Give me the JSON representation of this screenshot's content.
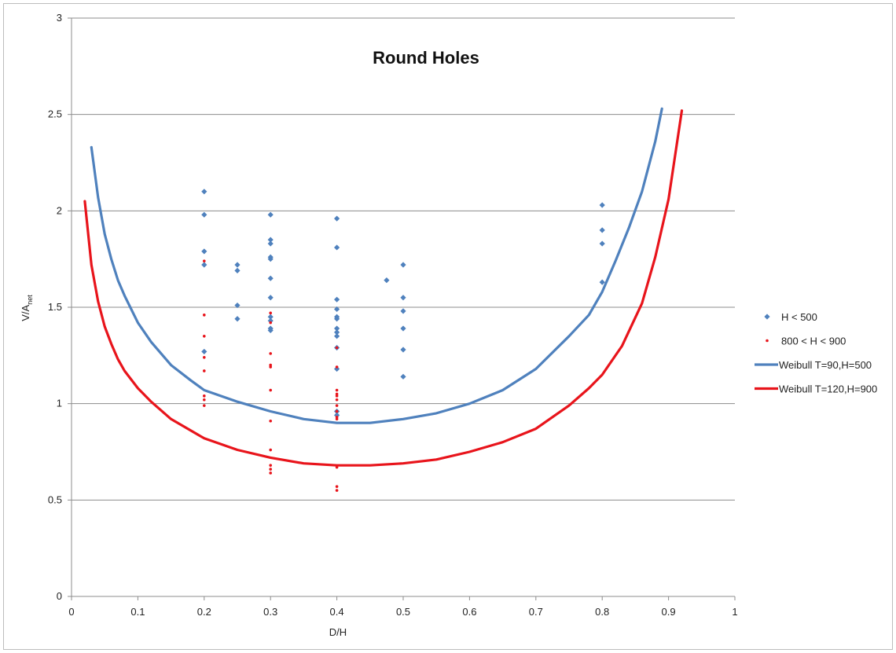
{
  "chart_data": {
    "type": "scatter",
    "title": "Round Holes",
    "xlabel": "D/H",
    "ylabel": {
      "main": "V/A",
      "sub": "net"
    },
    "xlim": [
      0,
      1
    ],
    "ylim": [
      0,
      3
    ],
    "x_ticks": [
      "0",
      "0.1",
      "0.2",
      "0.3",
      "0.4",
      "0.5",
      "0.6",
      "0.7",
      "0.8",
      "0.9",
      "1"
    ],
    "y_ticks": [
      "0",
      "0.5",
      "1",
      "1.5",
      "2",
      "2.5",
      "3"
    ],
    "grid": "horizontal",
    "legend_position": "right",
    "series": [
      {
        "name": "H < 500",
        "kind": "scatter",
        "marker": "diamond",
        "color": "#4f81bd",
        "points": [
          [
            0.2,
            2.1
          ],
          [
            0.2,
            1.98
          ],
          [
            0.2,
            1.79
          ],
          [
            0.2,
            1.72
          ],
          [
            0.2,
            1.27
          ],
          [
            0.25,
            1.72
          ],
          [
            0.25,
            1.69
          ],
          [
            0.25,
            1.51
          ],
          [
            0.25,
            1.44
          ],
          [
            0.3,
            1.98
          ],
          [
            0.3,
            1.85
          ],
          [
            0.3,
            1.83
          ],
          [
            0.3,
            1.76
          ],
          [
            0.3,
            1.75
          ],
          [
            0.3,
            1.65
          ],
          [
            0.3,
            1.55
          ],
          [
            0.3,
            1.45
          ],
          [
            0.3,
            1.43
          ],
          [
            0.3,
            1.39
          ],
          [
            0.3,
            1.38
          ],
          [
            0.4,
            1.96
          ],
          [
            0.4,
            1.81
          ],
          [
            0.4,
            1.54
          ],
          [
            0.4,
            1.49
          ],
          [
            0.4,
            1.45
          ],
          [
            0.4,
            1.44
          ],
          [
            0.4,
            1.39
          ],
          [
            0.4,
            1.37
          ],
          [
            0.4,
            1.35
          ],
          [
            0.4,
            1.29
          ],
          [
            0.4,
            1.18
          ],
          [
            0.4,
            0.96
          ],
          [
            0.4,
            0.94
          ],
          [
            0.475,
            1.64
          ],
          [
            0.5,
            1.72
          ],
          [
            0.5,
            1.55
          ],
          [
            0.5,
            1.48
          ],
          [
            0.5,
            1.39
          ],
          [
            0.5,
            1.28
          ],
          [
            0.5,
            1.14
          ],
          [
            0.8,
            2.03
          ],
          [
            0.8,
            1.9
          ],
          [
            0.8,
            1.83
          ],
          [
            0.8,
            1.63
          ]
        ]
      },
      {
        "name": "800 < H < 900",
        "kind": "scatter",
        "marker": "dot",
        "color": "#e8141b",
        "points": [
          [
            0.2,
            1.74
          ],
          [
            0.2,
            1.46
          ],
          [
            0.2,
            1.35
          ],
          [
            0.2,
            1.24
          ],
          [
            0.2,
            1.17
          ],
          [
            0.2,
            1.04
          ],
          [
            0.2,
            1.02
          ],
          [
            0.2,
            0.99
          ],
          [
            0.3,
            1.47
          ],
          [
            0.3,
            1.42
          ],
          [
            0.3,
            1.26
          ],
          [
            0.3,
            1.2
          ],
          [
            0.3,
            1.19
          ],
          [
            0.3,
            1.07
          ],
          [
            0.3,
            0.91
          ],
          [
            0.3,
            0.76
          ],
          [
            0.3,
            0.68
          ],
          [
            0.3,
            0.66
          ],
          [
            0.3,
            0.64
          ],
          [
            0.4,
            1.29
          ],
          [
            0.4,
            1.19
          ],
          [
            0.4,
            1.07
          ],
          [
            0.4,
            1.05
          ],
          [
            0.4,
            1.04
          ],
          [
            0.4,
            1.02
          ],
          [
            0.4,
            0.99
          ],
          [
            0.4,
            0.96
          ],
          [
            0.4,
            0.93
          ],
          [
            0.4,
            0.92
          ],
          [
            0.4,
            0.67
          ],
          [
            0.4,
            0.57
          ],
          [
            0.4,
            0.55
          ]
        ]
      },
      {
        "name": "Weibull T=90,H=500",
        "kind": "line",
        "color": "#4f81bd",
        "points": [
          [
            0.03,
            2.33
          ],
          [
            0.04,
            2.07
          ],
          [
            0.05,
            1.88
          ],
          [
            0.06,
            1.75
          ],
          [
            0.07,
            1.64
          ],
          [
            0.08,
            1.56
          ],
          [
            0.1,
            1.42
          ],
          [
            0.12,
            1.32
          ],
          [
            0.15,
            1.2
          ],
          [
            0.18,
            1.12
          ],
          [
            0.2,
            1.07
          ],
          [
            0.25,
            1.01
          ],
          [
            0.3,
            0.96
          ],
          [
            0.35,
            0.92
          ],
          [
            0.4,
            0.9
          ],
          [
            0.45,
            0.9
          ],
          [
            0.5,
            0.92
          ],
          [
            0.55,
            0.95
          ],
          [
            0.6,
            1.0
          ],
          [
            0.65,
            1.07
          ],
          [
            0.7,
            1.18
          ],
          [
            0.75,
            1.35
          ],
          [
            0.78,
            1.46
          ],
          [
            0.8,
            1.58
          ],
          [
            0.82,
            1.74
          ],
          [
            0.84,
            1.91
          ],
          [
            0.86,
            2.1
          ],
          [
            0.88,
            2.36
          ],
          [
            0.89,
            2.53
          ]
        ]
      },
      {
        "name": "Weibull T=120,H=900",
        "kind": "line",
        "color": "#e8141b",
        "points": [
          [
            0.02,
            2.05
          ],
          [
            0.03,
            1.72
          ],
          [
            0.04,
            1.53
          ],
          [
            0.05,
            1.4
          ],
          [
            0.06,
            1.31
          ],
          [
            0.07,
            1.23
          ],
          [
            0.08,
            1.17
          ],
          [
            0.1,
            1.08
          ],
          [
            0.12,
            1.01
          ],
          [
            0.15,
            0.92
          ],
          [
            0.2,
            0.82
          ],
          [
            0.25,
            0.76
          ],
          [
            0.3,
            0.72
          ],
          [
            0.35,
            0.69
          ],
          [
            0.4,
            0.68
          ],
          [
            0.45,
            0.68
          ],
          [
            0.5,
            0.69
          ],
          [
            0.55,
            0.71
          ],
          [
            0.6,
            0.75
          ],
          [
            0.65,
            0.8
          ],
          [
            0.7,
            0.87
          ],
          [
            0.75,
            0.99
          ],
          [
            0.78,
            1.08
          ],
          [
            0.8,
            1.15
          ],
          [
            0.83,
            1.3
          ],
          [
            0.86,
            1.52
          ],
          [
            0.88,
            1.76
          ],
          [
            0.9,
            2.06
          ],
          [
            0.92,
            2.52
          ]
        ]
      }
    ]
  }
}
